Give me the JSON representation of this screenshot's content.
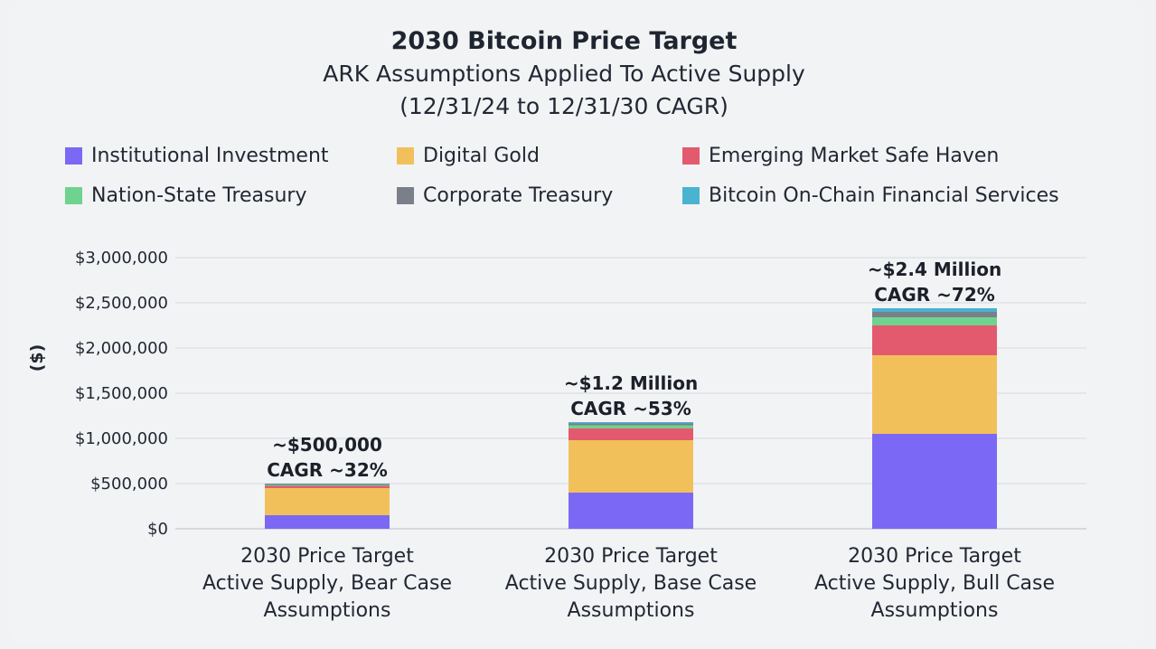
{
  "chart_data": {
    "type": "bar",
    "stacked": true,
    "title": "2030 Bitcoin Price Target",
    "subtitle": [
      "ARK Assumptions Applied To Active Supply",
      "(12/31/24 to 12/31/30 CAGR)"
    ],
    "ylabel": "($)",
    "ylim": [
      0,
      3000000
    ],
    "yticks": [
      "$0",
      "$500,000",
      "$1,000,000",
      "$1,500,000",
      "$2,000,000",
      "$2,500,000",
      "$3,000,000"
    ],
    "grid": true,
    "legend_placement": "top",
    "categories": [
      [
        "2030 Price Target",
        "Active Supply, Bear Case",
        "Assumptions"
      ],
      [
        "2030 Price Target",
        "Active Supply, Base Case",
        "Assumptions"
      ],
      [
        "2030 Price Target",
        "Active Supply, Bull Case",
        "Assumptions"
      ]
    ],
    "series": [
      {
        "name": "Institutional Investment",
        "color": "#7b68f5",
        "values": [
          150000,
          400000,
          1050000
        ]
      },
      {
        "name": "Digital Gold",
        "color": "#f2c05a",
        "values": [
          300000,
          580000,
          870000
        ]
      },
      {
        "name": "Emerging Market Safe Haven",
        "color": "#e35a6e",
        "values": [
          25000,
          130000,
          330000
        ]
      },
      {
        "name": "Nation-State Treasury",
        "color": "#6ed38e",
        "values": [
          10000,
          35000,
          90000
        ]
      },
      {
        "name": "Corporate Treasury",
        "color": "#7a7f89",
        "values": [
          10000,
          20000,
          60000
        ]
      },
      {
        "name": "Bitcoin On-Chain Financial Services",
        "color": "#49b3d1",
        "values": [
          5000,
          15000,
          40000
        ]
      }
    ],
    "annotations": [
      [
        "~$500,000",
        "CAGR ~32%"
      ],
      [
        "~$1.2 Million",
        "CAGR ~53%"
      ],
      [
        "~$2.4 Million",
        "CAGR ~72%"
      ]
    ]
  }
}
